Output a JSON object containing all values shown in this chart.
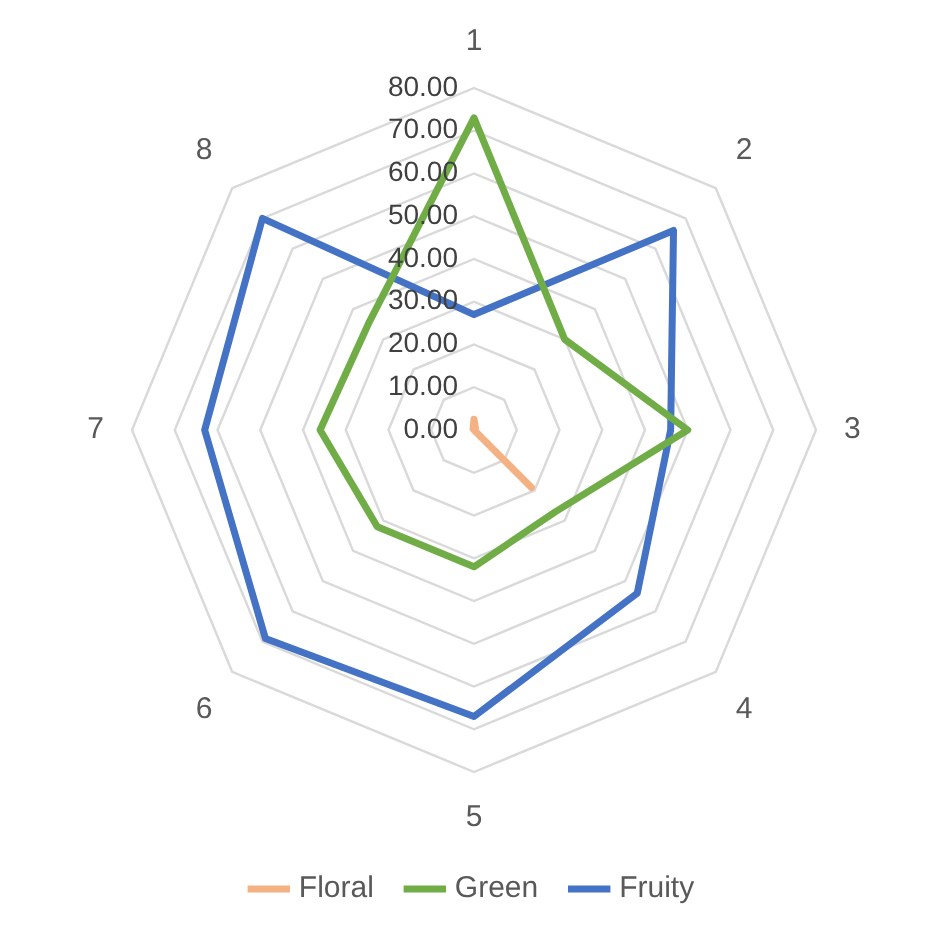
{
  "chart_data": {
    "type": "radar",
    "categories": [
      "1",
      "2",
      "3",
      "4",
      "5",
      "6",
      "7",
      "8"
    ],
    "series": [
      {
        "name": "Floral",
        "color": "#f4b183",
        "values": [
          2.5,
          0.5,
          0,
          19,
          0,
          0,
          0,
          0.3
        ]
      },
      {
        "name": "Green",
        "color": "#70ad47",
        "values": [
          73,
          30,
          50,
          27,
          32,
          32,
          36,
          35
        ]
      },
      {
        "name": "Fruity",
        "color": "#4472c4",
        "values": [
          27,
          66,
          46,
          54,
          67,
          69,
          63,
          70
        ]
      }
    ],
    "ylim": [
      0,
      80
    ],
    "yticks": [
      {
        "value": 0,
        "label": "0.00"
      },
      {
        "value": 10,
        "label": "10.00"
      },
      {
        "value": 20,
        "label": "20.00"
      },
      {
        "value": 30,
        "label": "30.00"
      },
      {
        "value": 40,
        "label": "40.00"
      },
      {
        "value": 50,
        "label": "50.00"
      },
      {
        "value": 60,
        "label": "60.00"
      },
      {
        "value": 70,
        "label": "70.00"
      },
      {
        "value": 80,
        "label": "80.00"
      }
    ],
    "grid": true,
    "legend": "bottom",
    "marker": "none",
    "line_style": "solid"
  }
}
